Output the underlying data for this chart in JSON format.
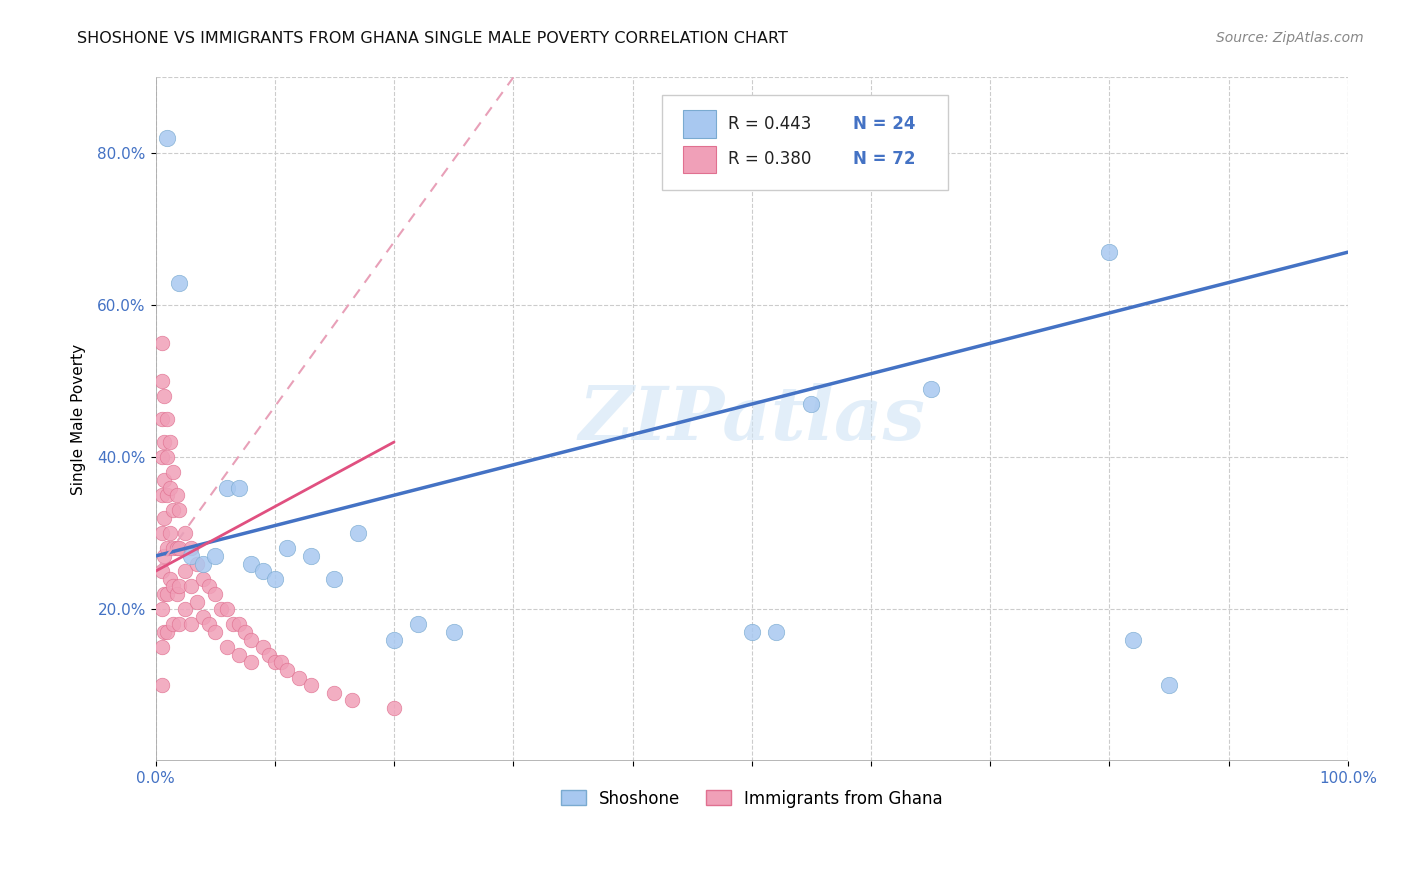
{
  "title": "SHOSHONE VS IMMIGRANTS FROM GHANA SINGLE MALE POVERTY CORRELATION CHART",
  "source": "Source: ZipAtlas.com",
  "ylabel": "Single Male Poverty",
  "xlim": [
    0.0,
    1.0
  ],
  "ylim": [
    0.0,
    0.9
  ],
  "yticks": [
    0.2,
    0.4,
    0.6,
    0.8
  ],
  "ytick_labels": [
    "20.0%",
    "40.0%",
    "60.0%",
    "80.0%"
  ],
  "xticks": [
    0.0,
    0.1,
    0.2,
    0.3,
    0.4,
    0.5,
    0.6,
    0.7,
    0.8,
    0.9,
    1.0
  ],
  "xtick_labels": [
    "0.0%",
    "",
    "",
    "",
    "",
    "",
    "",
    "",
    "",
    "",
    "100.0%"
  ],
  "shoshone_color": "#a8c8f0",
  "ghana_color": "#f0a0b8",
  "shoshone_edge": "#7aaad0",
  "ghana_edge": "#e07090",
  "trend_blue": "#4472c4",
  "trend_pink": "#e05080",
  "trend_pink_dashed": "#e8a0b8",
  "watermark": "ZIPatlas",
  "shoshone_R": "0.443",
  "shoshone_N": "24",
  "ghana_R": "0.380",
  "ghana_N": "72",
  "shoshone_x": [
    0.01,
    0.02,
    0.03,
    0.04,
    0.05,
    0.06,
    0.07,
    0.08,
    0.09,
    0.1,
    0.11,
    0.13,
    0.15,
    0.17,
    0.2,
    0.22,
    0.25,
    0.5,
    0.52,
    0.55,
    0.65,
    0.8,
    0.82,
    0.85
  ],
  "shoshone_y": [
    0.82,
    0.63,
    0.27,
    0.26,
    0.27,
    0.36,
    0.36,
    0.26,
    0.25,
    0.24,
    0.28,
    0.27,
    0.24,
    0.3,
    0.16,
    0.18,
    0.17,
    0.17,
    0.17,
    0.47,
    0.49,
    0.67,
    0.16,
    0.1
  ],
  "ghana_x": [
    0.005,
    0.005,
    0.005,
    0.005,
    0.005,
    0.005,
    0.005,
    0.005,
    0.005,
    0.005,
    0.007,
    0.007,
    0.007,
    0.007,
    0.007,
    0.007,
    0.007,
    0.01,
    0.01,
    0.01,
    0.01,
    0.01,
    0.01,
    0.012,
    0.012,
    0.012,
    0.012,
    0.015,
    0.015,
    0.015,
    0.015,
    0.015,
    0.018,
    0.018,
    0.018,
    0.02,
    0.02,
    0.02,
    0.02,
    0.025,
    0.025,
    0.025,
    0.03,
    0.03,
    0.03,
    0.035,
    0.035,
    0.04,
    0.04,
    0.045,
    0.045,
    0.05,
    0.05,
    0.055,
    0.06,
    0.06,
    0.065,
    0.07,
    0.07,
    0.075,
    0.08,
    0.08,
    0.09,
    0.095,
    0.1,
    0.105,
    0.11,
    0.12,
    0.13,
    0.15,
    0.165,
    0.2
  ],
  "ghana_y": [
    0.55,
    0.5,
    0.45,
    0.4,
    0.35,
    0.3,
    0.25,
    0.2,
    0.15,
    0.1,
    0.48,
    0.42,
    0.37,
    0.32,
    0.27,
    0.22,
    0.17,
    0.45,
    0.4,
    0.35,
    0.28,
    0.22,
    0.17,
    0.42,
    0.36,
    0.3,
    0.24,
    0.38,
    0.33,
    0.28,
    0.23,
    0.18,
    0.35,
    0.28,
    0.22,
    0.33,
    0.28,
    0.23,
    0.18,
    0.3,
    0.25,
    0.2,
    0.28,
    0.23,
    0.18,
    0.26,
    0.21,
    0.24,
    0.19,
    0.23,
    0.18,
    0.22,
    0.17,
    0.2,
    0.2,
    0.15,
    0.18,
    0.18,
    0.14,
    0.17,
    0.16,
    0.13,
    0.15,
    0.14,
    0.13,
    0.13,
    0.12,
    0.11,
    0.1,
    0.09,
    0.08,
    0.07
  ]
}
